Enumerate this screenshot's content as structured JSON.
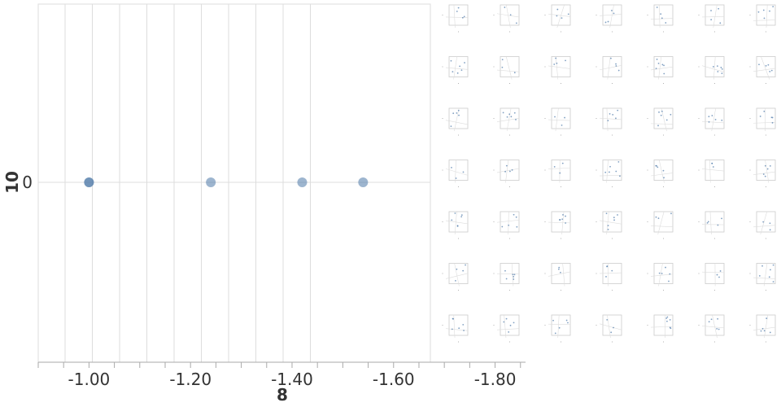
{
  "chart_data": {
    "type": "scatter",
    "xlabel": "8",
    "ylabel": "10",
    "x_reversed": true,
    "xlim": [
      -0.9,
      -1.86
    ],
    "x_ticks": [
      "-1.00",
      "-1.20",
      "-1.40",
      "-1.60",
      "-1.80"
    ],
    "x_tick_values": [
      -1.0,
      -1.2,
      -1.4,
      -1.6,
      -1.8
    ],
    "y_ticks": [
      "0"
    ],
    "grid": true,
    "point_color": "#4c78a8",
    "series": [
      {
        "x": [
          -1.0,
          -1.0,
          -1.24,
          -1.42,
          -1.54
        ],
        "y": [
          0,
          0,
          0,
          0,
          0
        ]
      }
    ],
    "thumbnail_grid": {
      "rows": 7,
      "cols": 7
    }
  }
}
